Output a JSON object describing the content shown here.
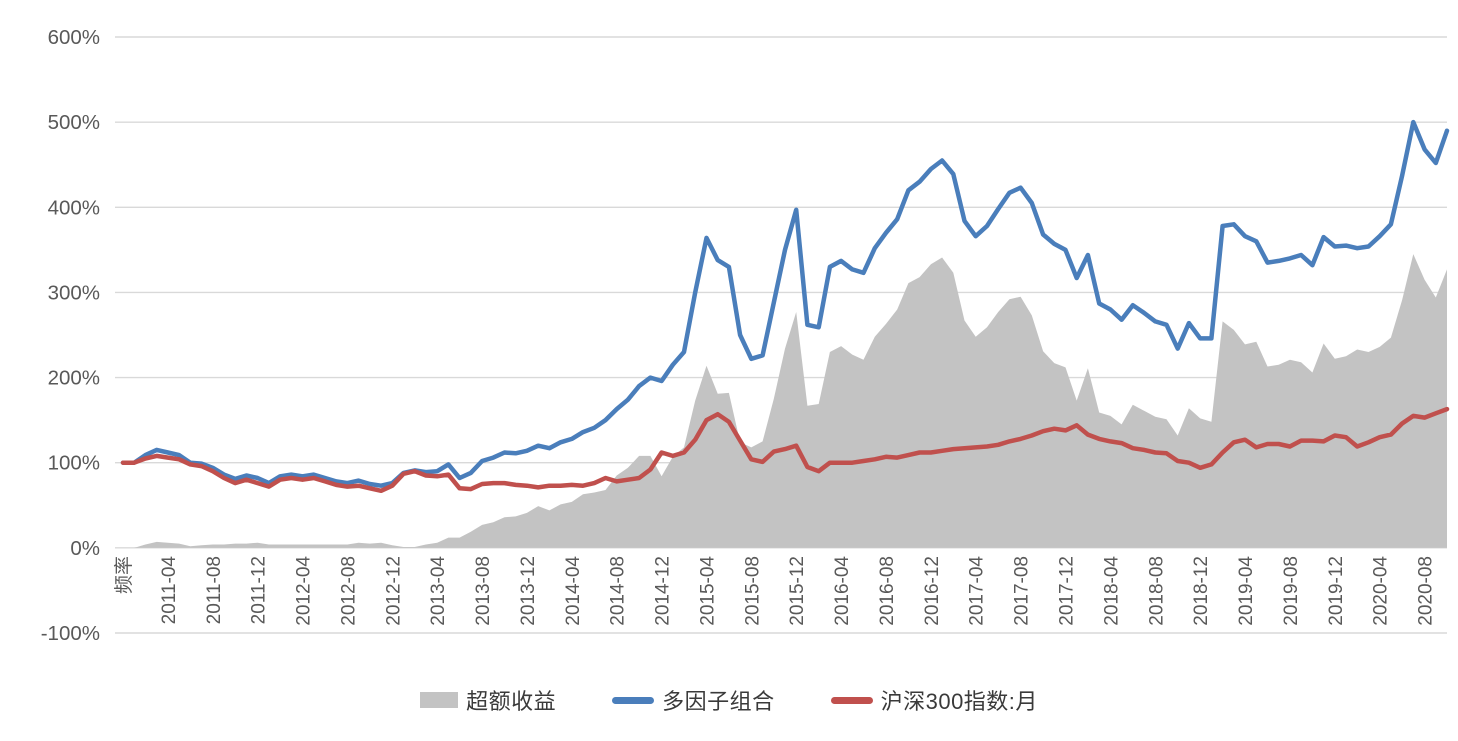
{
  "chart_data": {
    "type": "line",
    "description_series_types": "gray area + two lines, Excel style",
    "x_tick_interval": 4,
    "x_tick_labels": [
      "频率",
      "2011-04",
      "2011-08",
      "2011-12",
      "2012-04",
      "2012-08",
      "2012-12",
      "2013-04",
      "2013-08",
      "2013-12",
      "2014-04",
      "2014-08",
      "2014-12",
      "2015-04",
      "2015-08",
      "2015-12",
      "2016-04",
      "2016-08",
      "2016-12",
      "2017-04",
      "2017-08",
      "2017-12",
      "2018-04",
      "2018-08",
      "2018-12",
      "2019-04",
      "2019-08",
      "2019-12",
      "2020-04",
      "2020-08"
    ],
    "n_points": 119,
    "y_axis": {
      "min": -100,
      "max": 600,
      "step": 100,
      "tick_labels": [
        "600%",
        "500%",
        "400%",
        "300%",
        "200%",
        "100%",
        "0%",
        "-100%"
      ],
      "gridline_color": "#d9d9d9",
      "label_color": "#595959"
    },
    "legend": {
      "position": "bottom",
      "items": [
        "超额收益",
        "多因子组合",
        "沪深300指数:月"
      ]
    },
    "series": [
      {
        "name": "超额收益",
        "type": "area",
        "color": "#c3c3c3",
        "values": [
          0,
          0,
          4,
          7,
          6,
          5,
          2,
          3,
          4,
          4,
          5,
          5,
          6,
          4,
          4,
          4,
          4,
          4,
          4,
          4,
          4,
          6,
          5,
          6,
          3,
          1,
          1,
          4,
          6,
          12,
          12,
          19,
          27,
          30,
          36,
          37,
          41,
          49,
          44,
          51,
          54,
          63,
          65,
          68,
          85,
          94,
          108,
          108,
          84,
          107,
          118,
          173,
          214,
          181,
          182,
          124,
          118,
          125,
          175,
          234,
          277,
          167,
          169,
          230,
          237,
          227,
          221,
          248,
          263,
          280,
          311,
          318,
          333,
          341,
          323,
          267,
          248,
          259,
          277,
          292,
          295,
          273,
          231,
          217,
          212,
          173,
          211,
          159,
          155,
          145,
          168,
          161,
          154,
          151,
          132,
          164,
          152,
          148,
          266,
          256,
          239,
          242,
          213,
          215,
          221,
          218,
          206,
          240,
          222,
          225,
          233,
          230,
          236,
          247,
          291,
          345,
          315,
          294,
          327
        ]
      },
      {
        "name": "多因子组合",
        "type": "line",
        "color": "#4a7ebb",
        "stroke_width": 4.5,
        "values": [
          100,
          100,
          109,
          115,
          112,
          109,
          100,
          99,
          94,
          86,
          81,
          85,
          82,
          76,
          84,
          86,
          84,
          86,
          82,
          78,
          76,
          79,
          75,
          73,
          76,
          88,
          91,
          89,
          90,
          98,
          82,
          88,
          102,
          106,
          112,
          111,
          114,
          120,
          117,
          124,
          128,
          136,
          141,
          150,
          163,
          174,
          190,
          200,
          196,
          215,
          230,
          300,
          364,
          338,
          330,
          250,
          222,
          226,
          288,
          350,
          397,
          262,
          259,
          330,
          337,
          327,
          323,
          352,
          370,
          386,
          420,
          430,
          445,
          455,
          439,
          384,
          366,
          378,
          398,
          417,
          423,
          405,
          368,
          357,
          350,
          317,
          344,
          287,
          280,
          268,
          285,
          276,
          266,
          262,
          234,
          264,
          246,
          246,
          378,
          380,
          366,
          360,
          335,
          337,
          340,
          344,
          332,
          365,
          354,
          355,
          352,
          354,
          366,
          380,
          437,
          500,
          468,
          452,
          490
        ]
      },
      {
        "name": "沪深300指数:月",
        "type": "line",
        "color": "#c0504d",
        "stroke_width": 4.5,
        "values": [
          100,
          100,
          105,
          108,
          106,
          104,
          98,
          96,
          90,
          82,
          76,
          80,
          76,
          72,
          80,
          82,
          80,
          82,
          78,
          74,
          72,
          73,
          70,
          67,
          73,
          87,
          90,
          85,
          84,
          86,
          70,
          69,
          75,
          76,
          76,
          74,
          73,
          71,
          73,
          73,
          74,
          73,
          76,
          82,
          78,
          80,
          82,
          92,
          112,
          108,
          112,
          127,
          150,
          157,
          148,
          126,
          104,
          101,
          113,
          116,
          120,
          95,
          90,
          100,
          100,
          100,
          102,
          104,
          107,
          106,
          109,
          112,
          112,
          114,
          116,
          117,
          118,
          119,
          121,
          125,
          128,
          132,
          137,
          140,
          138,
          144,
          133,
          128,
          125,
          123,
          117,
          115,
          112,
          111,
          102,
          100,
          94,
          98,
          112,
          124,
          127,
          118,
          122,
          122,
          119,
          126,
          126,
          125,
          132,
          130,
          119,
          124,
          130,
          133,
          146,
          155,
          153,
          158,
          163
        ]
      }
    ]
  }
}
